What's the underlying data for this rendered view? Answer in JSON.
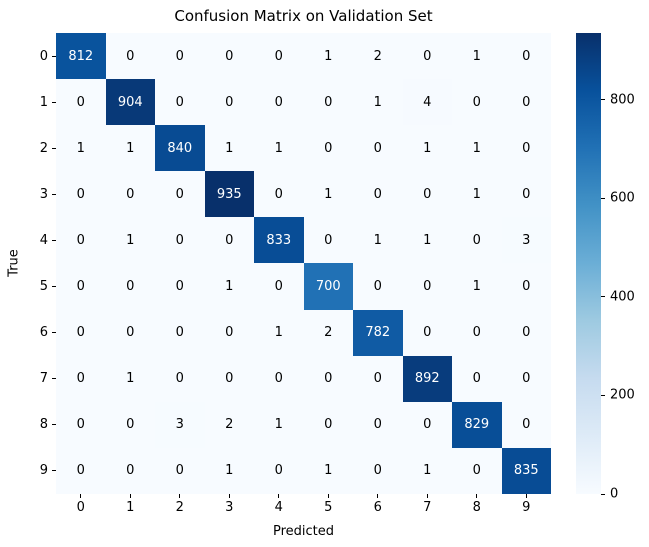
{
  "chart_data": {
    "type": "heatmap",
    "title": "Confusion Matrix on Validation Set",
    "xlabel": "Predicted",
    "ylabel": "True",
    "x_ticklabels": [
      "0",
      "1",
      "2",
      "3",
      "4",
      "5",
      "6",
      "7",
      "8",
      "9"
    ],
    "y_ticklabels": [
      "0",
      "1",
      "2",
      "3",
      "4",
      "5",
      "6",
      "7",
      "8",
      "9"
    ],
    "matrix": [
      [
        812,
        0,
        0,
        0,
        0,
        1,
        2,
        0,
        1,
        0
      ],
      [
        0,
        904,
        0,
        0,
        0,
        0,
        1,
        4,
        0,
        0
      ],
      [
        1,
        1,
        840,
        1,
        1,
        0,
        0,
        1,
        1,
        0
      ],
      [
        0,
        0,
        0,
        935,
        0,
        1,
        0,
        0,
        1,
        0
      ],
      [
        0,
        1,
        0,
        0,
        833,
        0,
        1,
        1,
        0,
        3
      ],
      [
        0,
        0,
        0,
        1,
        0,
        700,
        0,
        0,
        1,
        0
      ],
      [
        0,
        0,
        0,
        0,
        1,
        2,
        782,
        0,
        0,
        0
      ],
      [
        0,
        1,
        0,
        0,
        0,
        0,
        0,
        892,
        0,
        0
      ],
      [
        0,
        0,
        3,
        2,
        1,
        0,
        0,
        0,
        829,
        0
      ],
      [
        0,
        0,
        0,
        1,
        0,
        1,
        0,
        1,
        0,
        835
      ]
    ],
    "annotated": true,
    "colormap": "Blues",
    "vmin": 0,
    "vmax": 935,
    "colorbar_ticks": [
      0,
      200,
      400,
      600,
      800
    ],
    "colorbar_position": "right",
    "grid": false,
    "legend": false
  },
  "colors": {
    "background": "#ffffff",
    "blues_stops": [
      "#f7fbff",
      "#deebf7",
      "#c6dbef",
      "#9ecae1",
      "#6baed6",
      "#4292c6",
      "#2171b5",
      "#08519c",
      "#08306b"
    ],
    "annot_dark_text": "#000000",
    "annot_light_text": "#ffffff",
    "tick_color": "#000000"
  }
}
